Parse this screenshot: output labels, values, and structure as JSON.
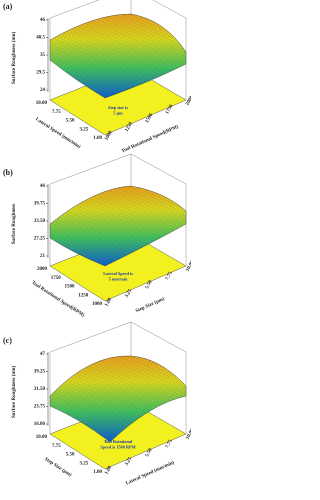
{
  "panels": [
    {
      "label": "(a)",
      "z_title": "Surface Roughness (nm)",
      "z_ticks": [
        "46",
        "40.5",
        "35",
        "29.5",
        "24"
      ],
      "left_axis": {
        "title": "Lateral Speed (mm/min)",
        "ticks": [
          "10.00",
          "7.75",
          "5.50",
          "3.25",
          "1.00"
        ]
      },
      "right_axis": {
        "title": "Tool Rotational Speed(RPM)",
        "ticks": [
          "1000",
          "1250",
          "1500",
          "1750",
          "2000"
        ]
      },
      "note": [
        "Step size is",
        "5 µm"
      ]
    },
    {
      "label": "(b)",
      "z_title": "Surface Roughness",
      "z_ticks": [
        "46",
        "39.75",
        "33.50",
        "27.25",
        "21"
      ],
      "left_axis": {
        "title": "Tool Rotational Speed(RPM)",
        "ticks": [
          "2000",
          "1750",
          "1500",
          "1250",
          "1000"
        ]
      },
      "right_axis": {
        "title": "Step Size (µm)",
        "ticks": [
          "1.00",
          "3.25",
          "5.50",
          "7.75",
          "10.00"
        ]
      },
      "note": [
        "Lateral Speed is",
        "5 mm/min"
      ]
    },
    {
      "label": "(c)",
      "z_title": "Surface Roughness (nm)",
      "z_ticks": [
        "47",
        "39.25",
        "31.50",
        "23.75",
        "16.00"
      ],
      "left_axis": {
        "title": "Step Size (µm)",
        "ticks": [
          "10.00",
          "7.75",
          "5.50",
          "3.25",
          "1.00"
        ]
      },
      "right_axis": {
        "title": "Lateral Speed (mm/min)",
        "ticks": [
          "1.00",
          "3.25",
          "5.50",
          "7.75",
          "10.00"
        ]
      },
      "note": [
        "Tool Rotational",
        "Speed is 1500 RPM"
      ]
    }
  ]
}
